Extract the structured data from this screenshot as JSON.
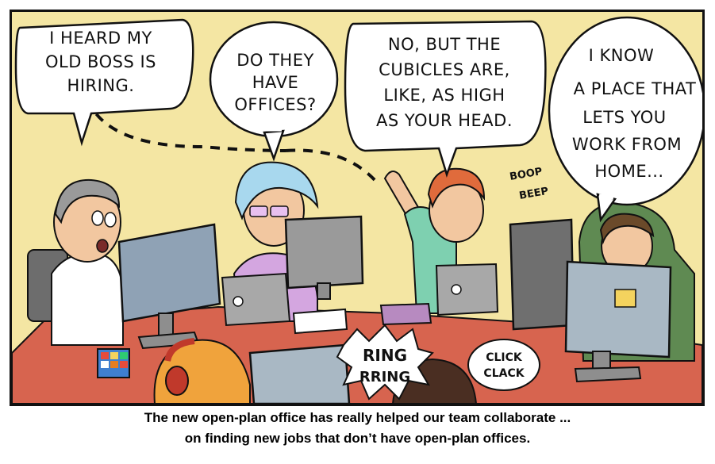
{
  "bubbles": {
    "bubble1": [
      "I HEARD MY",
      "OLD BOSS IS",
      "HIRING."
    ],
    "bubble2": [
      "DO THEY",
      "HAVE",
      "OFFICES?"
    ],
    "bubble3": [
      "NO, BUT THE",
      "CUBICLES ARE,",
      "LIKE, AS HIGH",
      "AS YOUR HEAD."
    ],
    "bubble4": [
      "I KNOW",
      "A PLACE THAT",
      "LETS YOU",
      "WORK FROM",
      "HOME..."
    ]
  },
  "sfx": {
    "boop": "BOOP",
    "beep": "BEEP",
    "ring": "RING",
    "rring": "RRING",
    "click": "CLICK",
    "clack": "CLACK"
  },
  "caption": {
    "line1": "The new open-plan office has really helped our team collaborate ...",
    "line2": "on finding new jobs that don’t have open-plan offices."
  },
  "colors": {
    "wall": "#f4e6a3",
    "desk": "#d7644f",
    "monitor": "#8e8e8e",
    "hoodie": "#5f8a52",
    "outline": "#111111"
  }
}
